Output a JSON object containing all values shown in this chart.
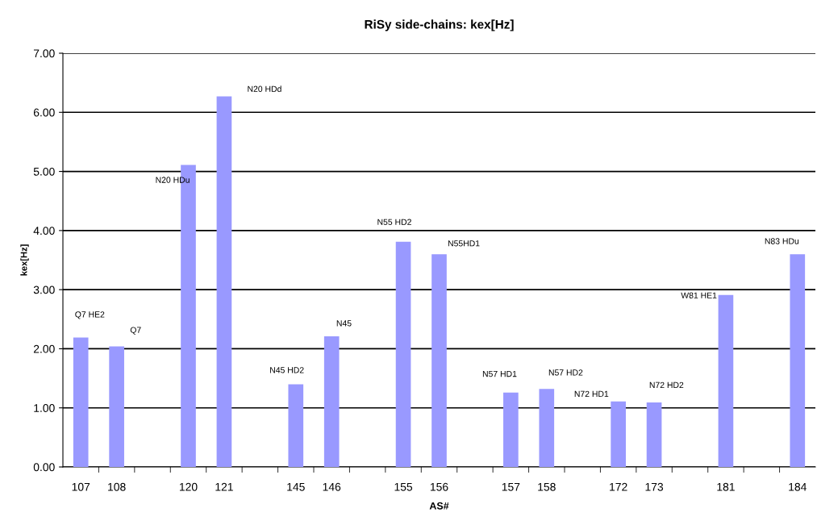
{
  "chart_data": {
    "type": "bar",
    "title": "RiSy side-chains: kex[Hz]",
    "xlabel": "AS#",
    "ylabel": "kex[Hz]",
    "categories": [
      "107",
      "108",
      null,
      "120",
      "121",
      null,
      "145",
      "146",
      null,
      "155",
      "156",
      null,
      "157",
      "158",
      null,
      "172",
      "173",
      null,
      "181",
      null,
      "184"
    ],
    "values": [
      2.19,
      2.04,
      null,
      5.11,
      6.27,
      null,
      1.4,
      2.21,
      null,
      3.81,
      3.6,
      null,
      1.26,
      1.32,
      null,
      1.11,
      1.09,
      null,
      2.91,
      null,
      3.6
    ],
    "color": "#9999ff",
    "ylim": [
      0,
      7
    ],
    "yticks": [
      {
        "value": 0,
        "label": "0.00"
      },
      {
        "value": 1,
        "label": "1.00"
      },
      {
        "value": 2,
        "label": "2.00"
      },
      {
        "value": 3,
        "label": "3.00"
      },
      {
        "value": 4,
        "label": "4.00"
      },
      {
        "value": 5,
        "label": "5.00"
      },
      {
        "value": 6,
        "label": "6.00"
      },
      {
        "value": 7,
        "label": "7.00"
      }
    ],
    "grid": "y",
    "annotations": [
      {
        "text": "Q7 HE2",
        "x": "107",
        "y": 2.19
      },
      {
        "text": "Q7",
        "x": "108",
        "y": 2.04
      },
      {
        "text": "N20 HDu",
        "x": "120",
        "y": 5.11
      },
      {
        "text": "N20 HDd",
        "x": "121",
        "y": 6.27
      },
      {
        "text": "N45 HD2",
        "x": "145",
        "y": 1.4
      },
      {
        "text": "N45",
        "x": "146",
        "y": 2.21
      },
      {
        "text": "N55 HD2",
        "x": "155",
        "y": 3.81
      },
      {
        "text": "N55HD1",
        "x": "156",
        "y": 3.6
      },
      {
        "text": "N57 HD1",
        "x": "157",
        "y": 1.26
      },
      {
        "text": "N57 HD2",
        "x": "158",
        "y": 1.32
      },
      {
        "text": "N72 HD1",
        "x": "172",
        "y": 1.11
      },
      {
        "text": "N72 HD2",
        "x": "173",
        "y": 1.09
      },
      {
        "text": "W81 HE1",
        "x": "181",
        "y": 2.91
      },
      {
        "text": "N83 HDu",
        "x": "184",
        "y": 3.6
      }
    ]
  }
}
